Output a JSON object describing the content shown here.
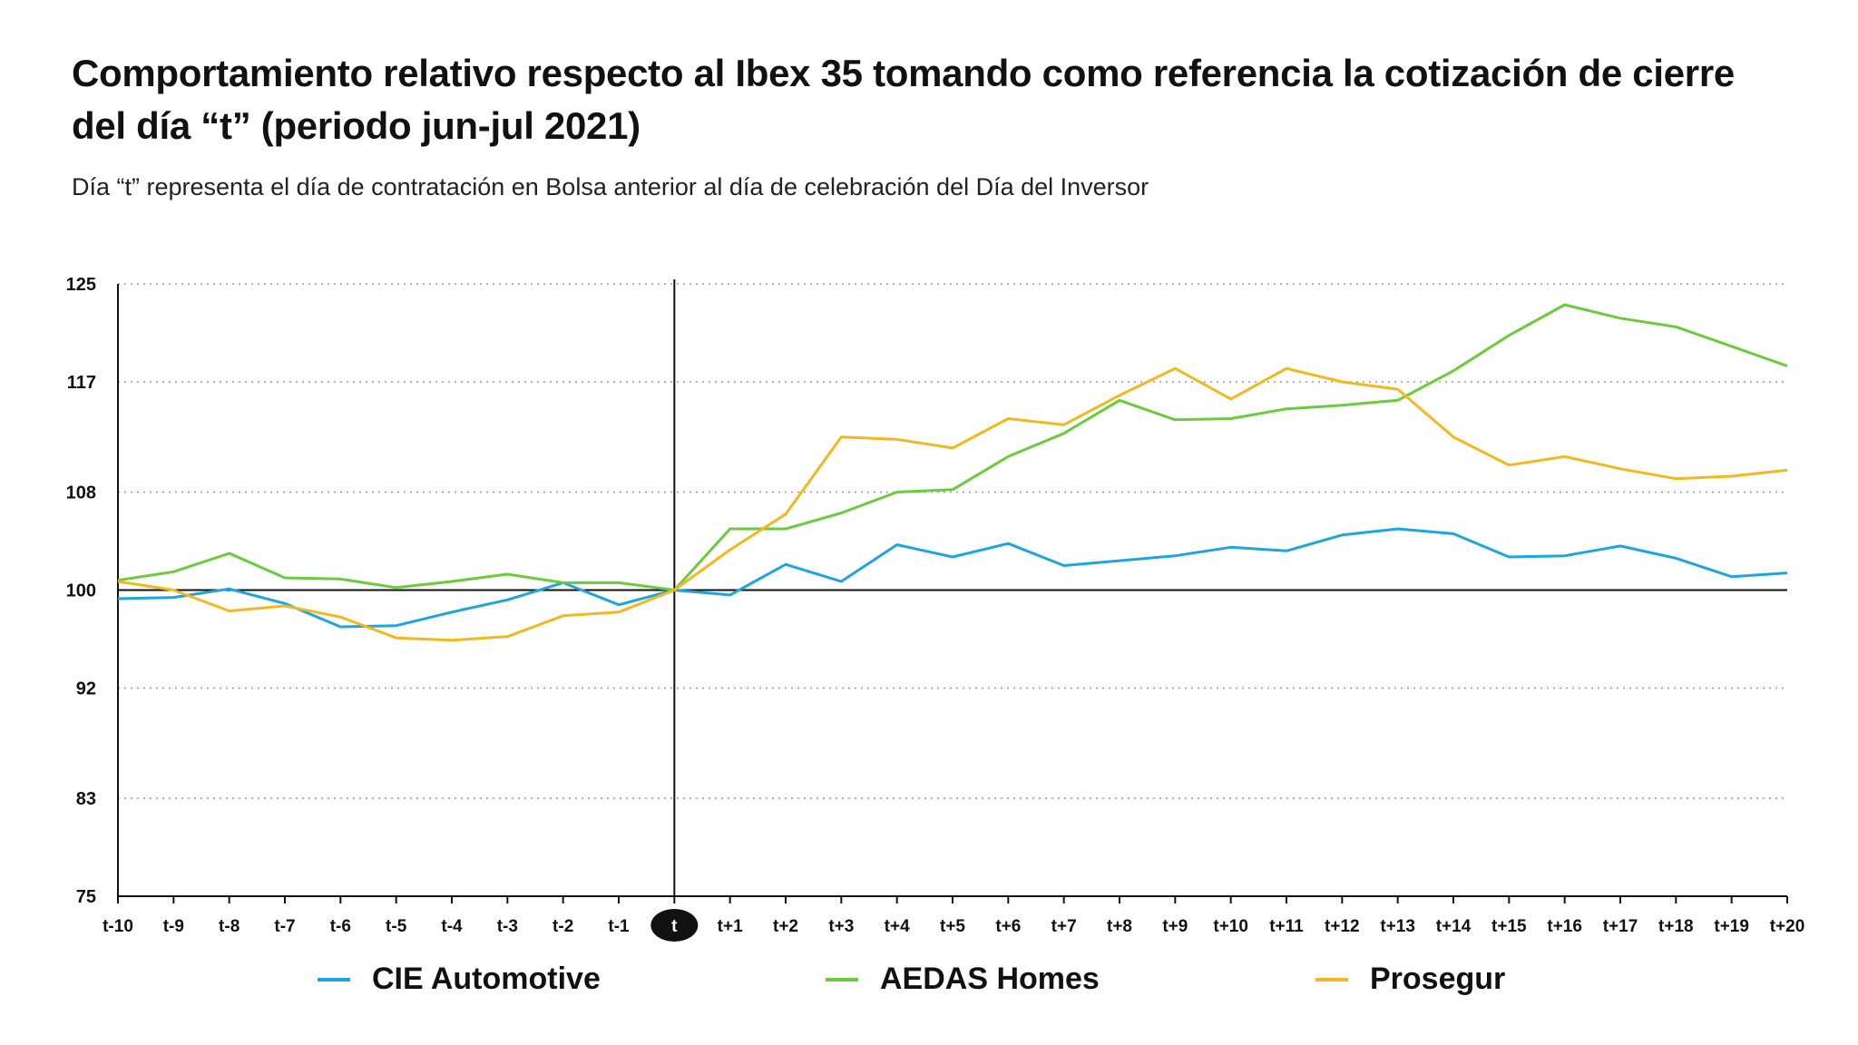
{
  "title": "Comportamiento relativo respecto al Ibex 35 tomando como referencia la cotización de cierre del día “t” (periodo jun-jul 2021)",
  "subtitle": "Día “t” representa el día de contratación en Bolsa anterior al día de celebración del Día del Inversor",
  "chart_data": {
    "type": "line",
    "title": "Comportamiento relativo respecto al Ibex 35 tomando como referencia la cotización de cierre del día “t” (periodo jun-jul 2021)",
    "subtitle": "Día “t” representa el día de contratación en Bolsa anterior al día de celebración del Día del Inversor",
    "xlabel": "",
    "ylabel": "",
    "categories": [
      "t-10",
      "t-9",
      "t-8",
      "t-7",
      "t-6",
      "t-5",
      "t-4",
      "t-3",
      "t-2",
      "t-1",
      "t",
      "t+1",
      "t+2",
      "t+3",
      "t+4",
      "t+5",
      "t+6",
      "t+7",
      "t+8",
      "t+9",
      "t+10",
      "t+11",
      "t+12",
      "t+13",
      "t+14",
      "t+15",
      "t+16",
      "t+17",
      "t+18",
      "t+19",
      "t+20"
    ],
    "highlight_category": "t",
    "yticks": [
      75,
      83,
      92,
      100,
      108,
      117,
      125
    ],
    "ylim": [
      75,
      125
    ],
    "reference_line": 100,
    "grid": "horizontal dotted",
    "legend_position": "bottom",
    "series": [
      {
        "name": "CIE Automotive",
        "color": "#1ea5e0",
        "values": [
          99.3,
          99.4,
          100.1,
          98.9,
          97.0,
          97.1,
          98.2,
          99.2,
          100.6,
          98.8,
          100.0,
          99.6,
          102.1,
          100.7,
          103.7,
          102.7,
          103.8,
          102.0,
          102.4,
          102.8,
          103.5,
          103.2,
          104.5,
          105.0,
          104.6,
          102.7,
          102.8,
          103.6,
          102.6,
          101.1,
          101.4
        ]
      },
      {
        "name": "AEDAS Homes",
        "color": "#6acb3c",
        "values": [
          100.8,
          101.5,
          103.0,
          101.0,
          100.9,
          100.2,
          100.7,
          101.3,
          100.6,
          100.6,
          100.0,
          105.0,
          105.0,
          106.3,
          108.0,
          108.2,
          110.9,
          112.8,
          115.5,
          113.9,
          114.0,
          114.8,
          115.1,
          115.5,
          117.9,
          120.8,
          123.3,
          122.2,
          121.5,
          119.9,
          118.3
        ]
      },
      {
        "name": "Prosegur",
        "color": "#f2b81e",
        "values": [
          100.7,
          100.0,
          98.3,
          98.7,
          97.8,
          96.1,
          95.9,
          96.2,
          97.9,
          98.2,
          100.0,
          103.3,
          106.2,
          112.5,
          112.3,
          111.6,
          114.0,
          113.5,
          115.9,
          118.1,
          115.6,
          118.1,
          117.0,
          116.4,
          112.5,
          110.2,
          110.9,
          109.9,
          109.1,
          109.3,
          109.8
        ]
      }
    ]
  }
}
